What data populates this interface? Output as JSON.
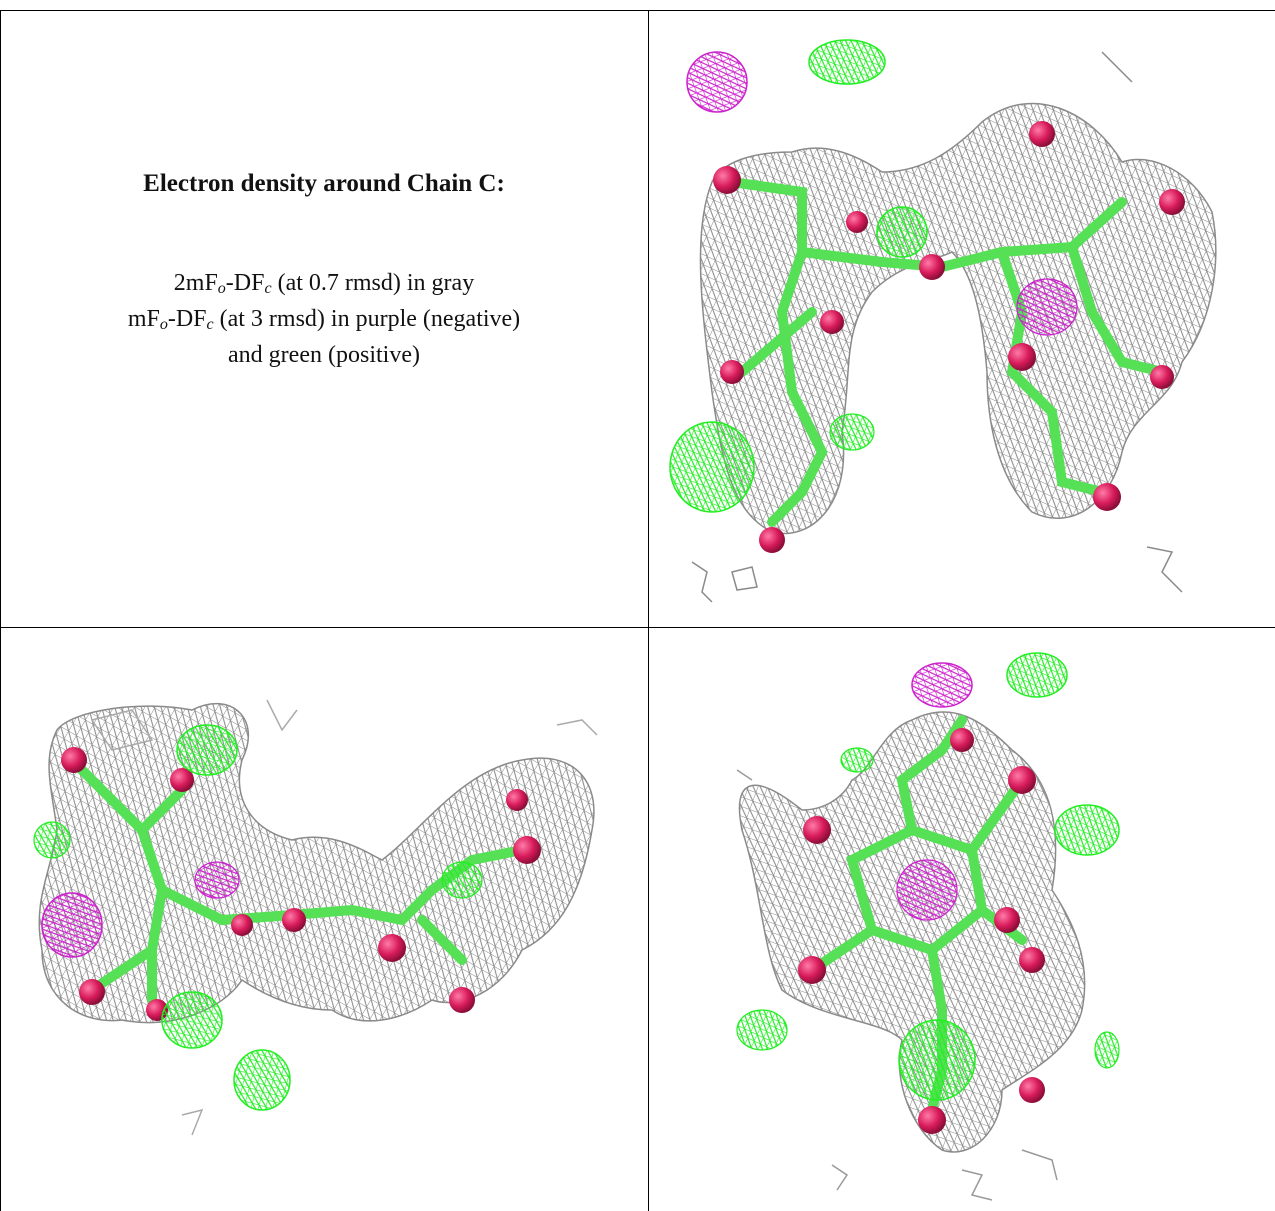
{
  "caption": {
    "title": "Electron density around Chain C:",
    "line1_prefix": "2mF",
    "line1_sub1": "o",
    "line1_mid": "-DF",
    "line1_sub2": "c",
    "line1_suffix": " (at 0.7 rmsd) in gray",
    "line2_prefix": "mF",
    "line2_sub1": "o",
    "line2_mid": "-DF",
    "line2_sub2": "c",
    "line2_suffix": " (at 3 rmsd) in purple (negative)",
    "line3": "and green (positive)"
  },
  "panels": [
    {
      "name": "density-view-top-right"
    },
    {
      "name": "density-view-bottom-left"
    },
    {
      "name": "density-view-bottom-right"
    }
  ],
  "colors": {
    "mesh_gray": "#8a8a8a",
    "mesh_light": "#c8c8c8",
    "positive_green": "#22ee22",
    "negative_purple": "#cc22cc",
    "atom_red": "#d81b5a",
    "bond_green": "#55e055"
  }
}
